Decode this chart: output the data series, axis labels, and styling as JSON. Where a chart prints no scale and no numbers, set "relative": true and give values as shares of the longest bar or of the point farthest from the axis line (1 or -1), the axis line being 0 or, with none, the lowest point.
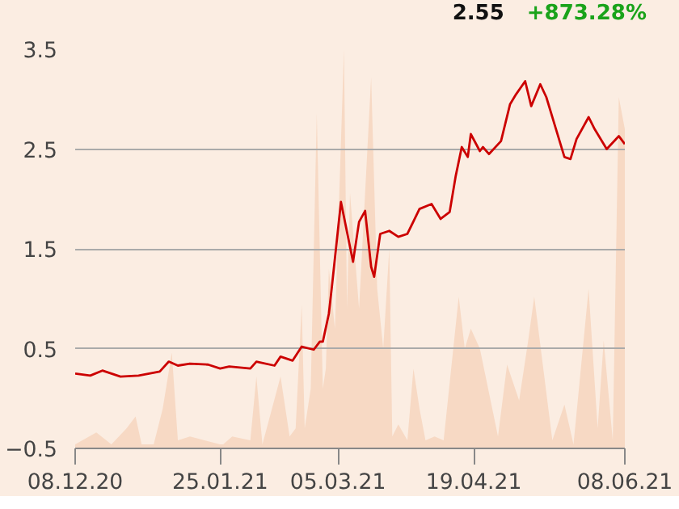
{
  "chart_data": [
    {
      "type": "line",
      "annotations": [
        "2.55",
        "+873.28%"
      ],
      "x": [
        "2020-12-08",
        "2020-12-13",
        "2020-12-17",
        "2020-12-23",
        "2020-12-29",
        "2021-01-05",
        "2021-01-08",
        "2021-01-11",
        "2021-01-15",
        "2021-01-21",
        "2021-01-25",
        "2021-01-28",
        "2021-02-04",
        "2021-02-06",
        "2021-02-12",
        "2021-02-14",
        "2021-02-18",
        "2021-02-21",
        "2021-02-25",
        "2021-02-27",
        "2021-02-28",
        "2021-03-02",
        "2021-03-03",
        "2021-03-06",
        "2021-03-10",
        "2021-03-12",
        "2021-03-14",
        "2021-03-16",
        "2021-03-17",
        "2021-03-19",
        "2021-03-22",
        "2021-03-25",
        "2021-03-28",
        "2021-04-01",
        "2021-04-05",
        "2021-04-08",
        "2021-04-11",
        "2021-04-13",
        "2021-04-15",
        "2021-04-17",
        "2021-04-18",
        "2021-04-21",
        "2021-04-22",
        "2021-04-24",
        "2021-04-28",
        "2021-05-01",
        "2021-05-03",
        "2021-05-06",
        "2021-05-08",
        "2021-05-11",
        "2021-05-13",
        "2021-05-16",
        "2021-05-19",
        "2021-05-21",
        "2021-05-23",
        "2021-05-27",
        "2021-05-29",
        "2021-06-02",
        "2021-06-06",
        "2021-06-08"
      ],
      "series": [
        {
          "color": "#cc0000",
          "values": [
            0.25,
            0.23,
            0.28,
            0.22,
            0.23,
            0.27,
            0.37,
            0.33,
            0.35,
            0.34,
            0.3,
            0.32,
            0.3,
            0.37,
            0.33,
            0.42,
            0.38,
            0.52,
            0.49,
            0.57,
            0.57,
            0.85,
            1.12,
            1.97,
            1.37,
            1.77,
            1.88,
            1.32,
            1.22,
            1.65,
            1.68,
            1.62,
            1.65,
            1.9,
            1.95,
            1.8,
            1.87,
            2.23,
            2.52,
            2.42,
            2.65,
            2.48,
            2.52,
            2.45,
            2.58,
            2.95,
            3.05,
            3.18,
            2.93,
            3.15,
            3.02,
            2.72,
            2.42,
            2.4,
            2.6,
            2.82,
            2.7,
            2.5,
            2.63,
            2.55
          ]
        }
      ],
      "xlim": [
        "2020-12-08",
        "2021-06-08"
      ],
      "xticks": [
        {
          "value": "2020-12-08",
          "label": "08.12.20"
        },
        {
          "value": "2021-01-25",
          "label": "25.01.21"
        },
        {
          "value": "2021-03-05",
          "label": "05.03.21"
        },
        {
          "value": "2021-04-19",
          "label": "19.04.21"
        },
        {
          "value": "2021-06-08",
          "label": "08.06.21"
        }
      ],
      "ylim": [
        -0.5,
        3.5
      ],
      "yticks": [
        {
          "value": -0.5,
          "label": "−0.5"
        },
        0.5,
        1.5,
        2.5,
        3.5
      ],
      "grid": "y",
      "line_style": "solid"
    },
    {
      "type": "area",
      "relative": true,
      "color": "#f7d9c4",
      "xlim": [
        "2020-12-08",
        "2021-06-08"
      ],
      "x": [
        "2020-12-08",
        "2020-12-15",
        "2020-12-20",
        "2020-12-25",
        "2020-12-28",
        "2020-12-30",
        "2021-01-03",
        "2021-01-06",
        "2021-01-09",
        "2021-01-11",
        "2021-01-15",
        "2021-01-25",
        "2021-01-26",
        "2021-01-29",
        "2021-02-04",
        "2021-02-06",
        "2021-02-08",
        "2021-02-14",
        "2021-02-17",
        "2021-02-19",
        "2021-02-21",
        "2021-02-22",
        "2021-02-24",
        "2021-02-26",
        "2021-02-28",
        "2021-03-01",
        "2021-03-02",
        "2021-03-04",
        "2021-03-07",
        "2021-03-08",
        "2021-03-09",
        "2021-03-12",
        "2021-03-16",
        "2021-03-18",
        "2021-03-20",
        "2021-03-22",
        "2021-03-23",
        "2021-03-25",
        "2021-03-28",
        "2021-03-30",
        "2021-04-01",
        "2021-04-03",
        "2021-04-06",
        "2021-04-09",
        "2021-04-14",
        "2021-04-16",
        "2021-04-18",
        "2021-04-21",
        "2021-04-27",
        "2021-04-30",
        "2021-05-04",
        "2021-05-07",
        "2021-05-09",
        "2021-05-15",
        "2021-05-19",
        "2021-05-22",
        "2021-05-27",
        "2021-05-30",
        "2021-06-01",
        "2021-06-04",
        "2021-06-06",
        "2021-06-08"
      ],
      "values": [
        0.01,
        0.04,
        0.01,
        0.05,
        0.08,
        0.01,
        0.01,
        0.1,
        0.24,
        0.02,
        0.03,
        0.01,
        0.01,
        0.03,
        0.02,
        0.18,
        0.01,
        0.18,
        0.03,
        0.05,
        0.36,
        0.05,
        0.15,
        0.84,
        0.15,
        0.2,
        0.45,
        0.3,
        1.0,
        0.35,
        0.64,
        0.35,
        0.93,
        0.4,
        0.25,
        0.5,
        0.03,
        0.06,
        0.02,
        0.2,
        0.1,
        0.02,
        0.03,
        0.02,
        0.38,
        0.25,
        0.3,
        0.25,
        0.03,
        0.21,
        0.12,
        0.27,
        0.38,
        0.02,
        0.11,
        0.01,
        0.4,
        0.05,
        0.27,
        0.02,
        0.88,
        0.8
      ]
    }
  ]
}
